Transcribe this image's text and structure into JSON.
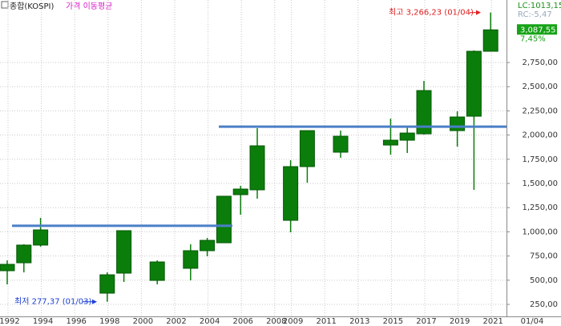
{
  "chart_data": {
    "type": "candlestick",
    "symbol": "종합(KOSPI)",
    "indicator": "가격 이동평균",
    "lc": "LC:1013,15",
    "rc": "RC:-5,47",
    "last_label": "01/04",
    "current": {
      "value": 3087.55,
      "label": "3,087,55"
    },
    "change": "7,45%",
    "high_note": "최고 3,266,23 (01/04)",
    "low_note": "최저 277,37 (01/03)",
    "categories": [
      "1992",
      null,
      "1994",
      null,
      "1996",
      null,
      "1998",
      null,
      "2000",
      null,
      "2002",
      null,
      "2004",
      null,
      "2006",
      null,
      "2008",
      "2009",
      null,
      "2011",
      null,
      "2013",
      null,
      "2015",
      null,
      "2017",
      null,
      "2019",
      null,
      "2021"
    ],
    "open": [
      598,
      680,
      863,
      null,
      null,
      null,
      366,
      573,
      null,
      498,
      null,
      623,
      805,
      887,
      1384,
      1434,
      null,
      1119,
      1674,
      null,
      1823,
      null,
      null,
      1897,
      1947,
      2013,
      null,
      2046,
      2195,
      2866
    ],
    "high": [
      705,
      871,
      1144,
      null,
      null,
      null,
      581,
      1012,
      null,
      705,
      null,
      871,
      937,
      1368,
      1475,
      2071,
      null,
      1740,
      2046,
      null,
      2046,
      null,
      null,
      2170,
      2088,
      2560,
      null,
      2245,
      2874,
      3266.23
    ],
    "low": [
      457,
      581,
      846,
      null,
      null,
      null,
      277.37,
      482,
      null,
      457,
      null,
      498,
      747,
      887,
      1177,
      1343,
      null,
      995,
      1508,
      null,
      1765,
      null,
      null,
      1798,
      1815,
      2005,
      null,
      1881,
      1434,
      2866
    ],
    "close": [
      664,
      863,
      1020,
      null,
      null,
      null,
      556,
      1012,
      null,
      689,
      null,
      805,
      912,
      1368,
      1442,
      1889,
      null,
      1674,
      2046,
      null,
      1988,
      null,
      null,
      1947,
      2021,
      2460,
      null,
      2187,
      2866,
      3087.55
    ],
    "color": "#0b7d0b",
    "hlines": [
      1063,
      2087
    ],
    "hline_color": "#4a7fc8",
    "ylim": [
      126,
      3396
    ],
    "yticks": [
      {
        "value": 250,
        "label": "250,00"
      },
      {
        "value": 500,
        "label": "500,00"
      },
      {
        "value": 750,
        "label": "750,00"
      },
      {
        "value": 1000,
        "label": "1,000,00"
      },
      {
        "value": 1250,
        "label": "1,250,00"
      },
      {
        "value": 1500,
        "label": "1,500,00"
      },
      {
        "value": 1750,
        "label": "1,750,00"
      },
      {
        "value": 2000,
        "label": "2,000,00"
      },
      {
        "value": 2250,
        "label": "2,250,00"
      },
      {
        "value": 2500,
        "label": "2,500,00"
      },
      {
        "value": 2750,
        "label": "2,750,00"
      }
    ],
    "grid": true
  }
}
